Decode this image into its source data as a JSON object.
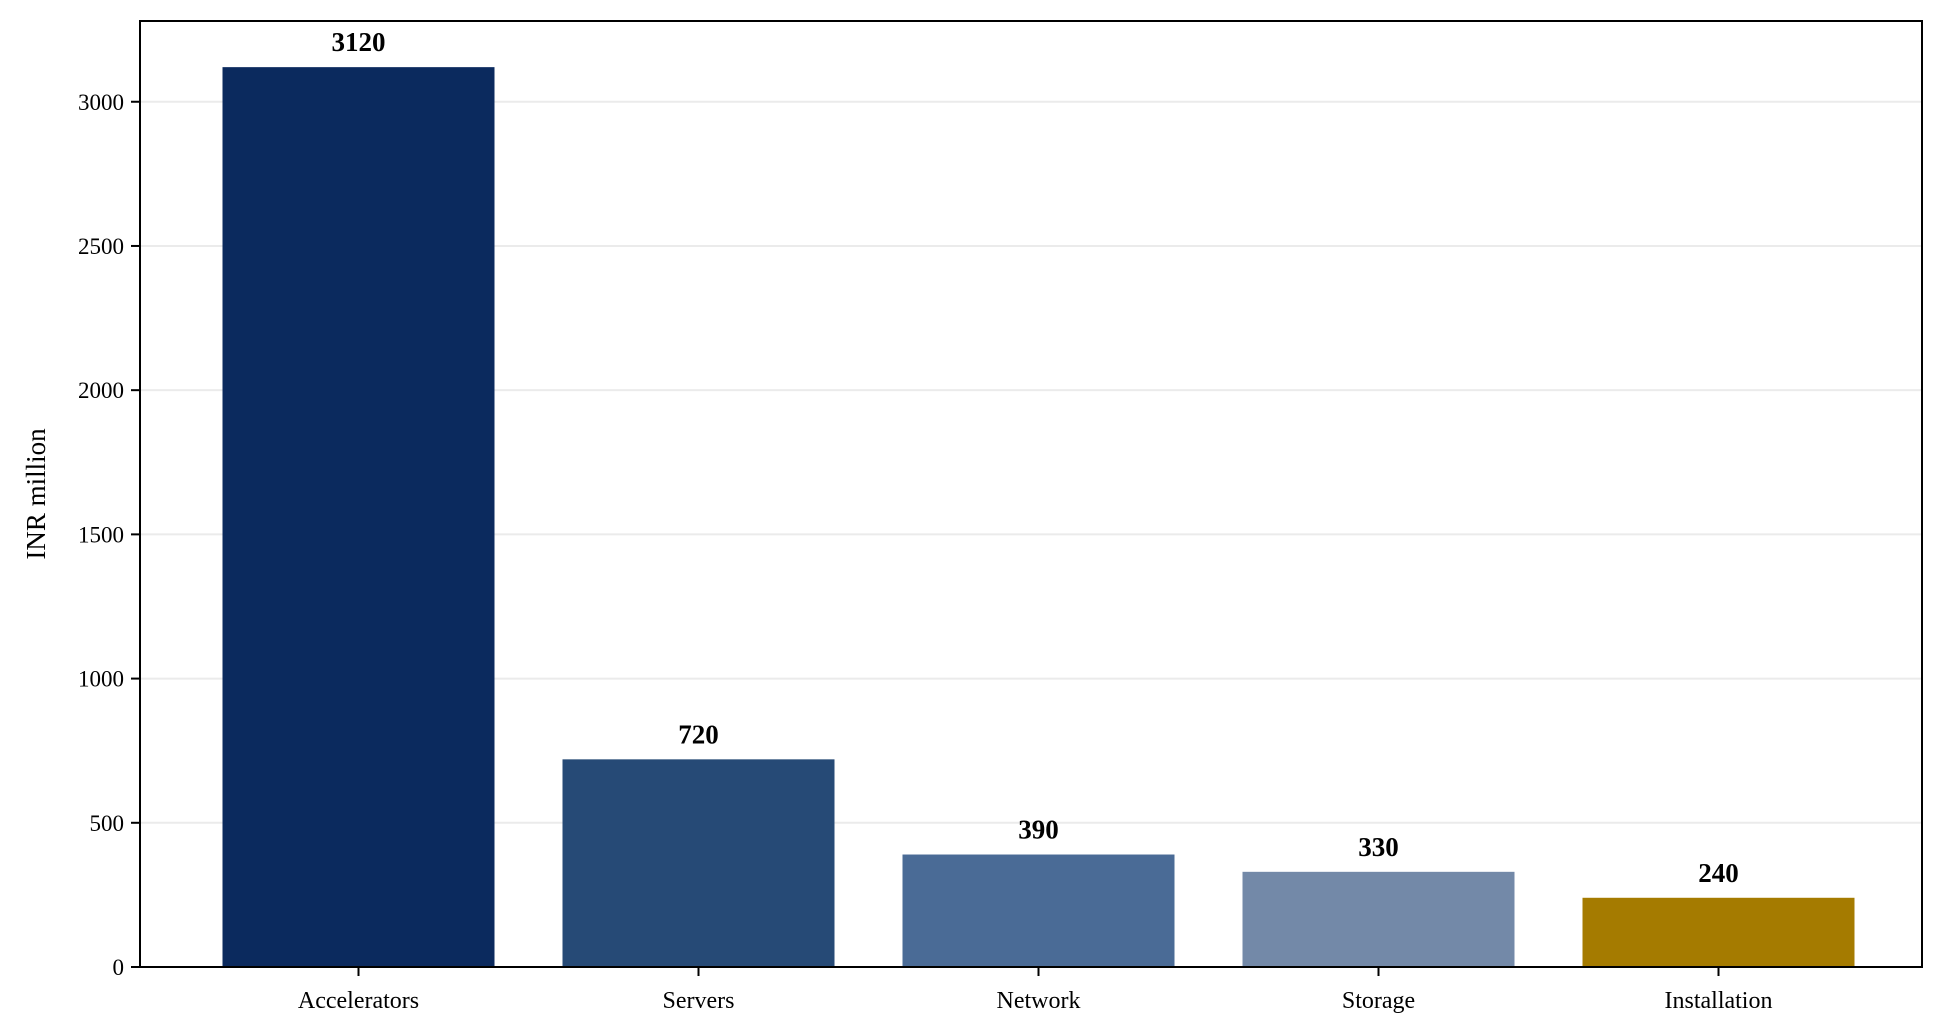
{
  "chart_data": {
    "type": "bar",
    "title": "",
    "xlabel": "",
    "ylabel": "INR million",
    "categories": [
      "Accelerators",
      "Servers",
      "Network",
      "Storage",
      "Installation"
    ],
    "values": [
      3120,
      720,
      390,
      330,
      240
    ],
    "data_labels": [
      "3120",
      "720",
      "390",
      "330",
      "240"
    ],
    "colors": [
      "#0b2a5e",
      "#264a76",
      "#4a6b96",
      "#7389a8",
      "#a57b00"
    ],
    "ylim": [
      0,
      3280
    ],
    "yticks": [
      0,
      500,
      1000,
      1500,
      2000,
      2500,
      3000
    ],
    "ytick_labels": [
      "0",
      "500",
      "1000",
      "1500",
      "2000",
      "2500",
      "3000"
    ],
    "grid": "horizontal",
    "grid_color": "#ebebeb",
    "legend": "none"
  }
}
